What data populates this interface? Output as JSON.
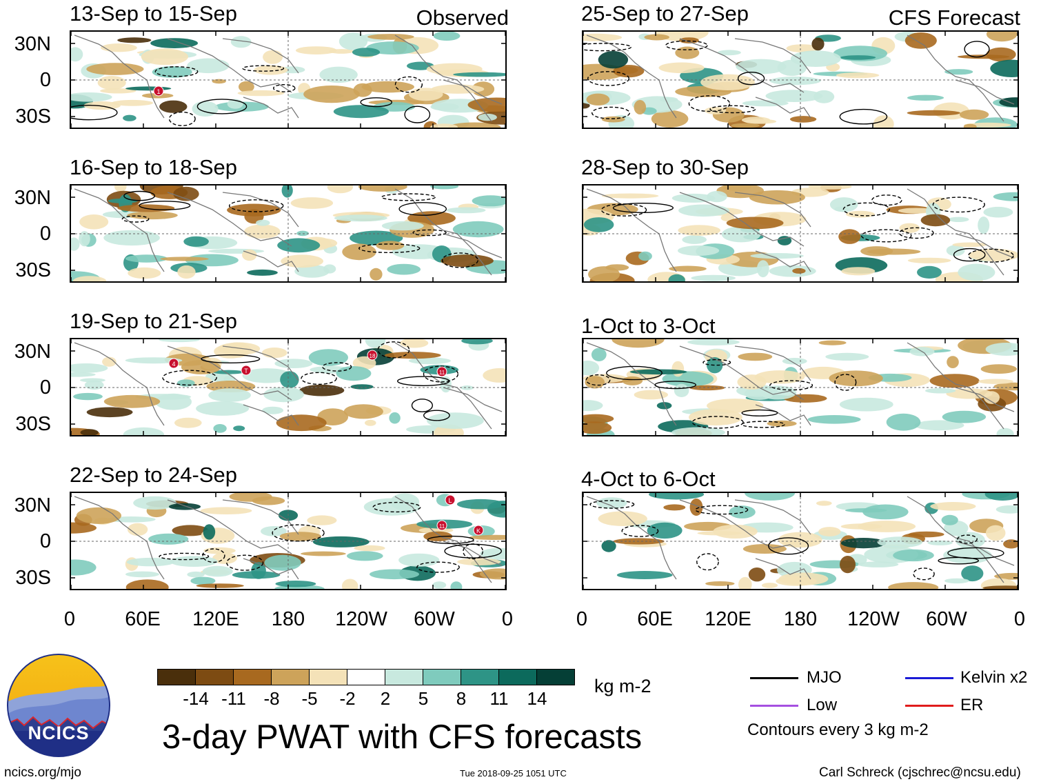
{
  "header": {
    "observed_label": "Observed",
    "forecast_label": "CFS Forecast"
  },
  "panels": {
    "observed": [
      {
        "title": "13-Sep to 15-Sep"
      },
      {
        "title": "16-Sep to 18-Sep"
      },
      {
        "title": "19-Sep to 21-Sep"
      },
      {
        "title": "22-Sep to 24-Sep"
      }
    ],
    "forecast": [
      {
        "title": "25-Sep to 27-Sep"
      },
      {
        "title": "28-Sep to 30-Sep"
      },
      {
        "title": "1-Oct to 3-Oct"
      },
      {
        "title": "4-Oct to 6-Oct"
      }
    ]
  },
  "axes": {
    "lat_labels": [
      "30N",
      "0",
      "30S"
    ],
    "lon_labels": [
      "0",
      "60E",
      "120E",
      "180",
      "120W",
      "60W",
      "0"
    ]
  },
  "storm_markers": [
    {
      "panel": "13-Sep to 15-Sep",
      "label": "1"
    },
    {
      "panel": "19-Sep to 21-Sep",
      "label": "4"
    },
    {
      "panel": "19-Sep to 21-Sep",
      "label": "T"
    },
    {
      "panel": "19-Sep to 21-Sep",
      "label": "18"
    },
    {
      "panel": "19-Sep to 21-Sep",
      "label": "11"
    },
    {
      "panel": "22-Sep to 24-Sep",
      "label": "L"
    },
    {
      "panel": "22-Sep to 24-Sep",
      "label": "11"
    },
    {
      "panel": "22-Sep to 24-Sep",
      "label": "K"
    }
  ],
  "colorbar": {
    "ticks": [
      "-14",
      "-11",
      "-8",
      "-5",
      "-2",
      "2",
      "5",
      "8",
      "11",
      "14"
    ],
    "colors": [
      "#4a2f0b",
      "#7d4b12",
      "#a8691f",
      "#cda35a",
      "#f4e2b8",
      "#ffffff",
      "#c8e9df",
      "#7fcbbd",
      "#2e9486",
      "#0c6a5c",
      "#053f36"
    ],
    "units": "kg m-2"
  },
  "legend": {
    "items": [
      {
        "label": "MJO",
        "color": "#000000"
      },
      {
        "label": "Kelvin x2",
        "color": "#1a1ad6"
      },
      {
        "label": "Low",
        "color": "#a54fe0"
      },
      {
        "label": "ER",
        "color": "#e01c1c"
      }
    ],
    "contour_note": "Contours every 3 kg m-2"
  },
  "footer": {
    "main_title": "3-day PWAT with CFS forecasts",
    "logo_text": "NCICS",
    "url": "ncics.org/mjo",
    "timestamp": "Tue 2018-09-25 1051 UTC",
    "author": "Carl Schreck (cjschrec@ncsu.edu)"
  }
}
